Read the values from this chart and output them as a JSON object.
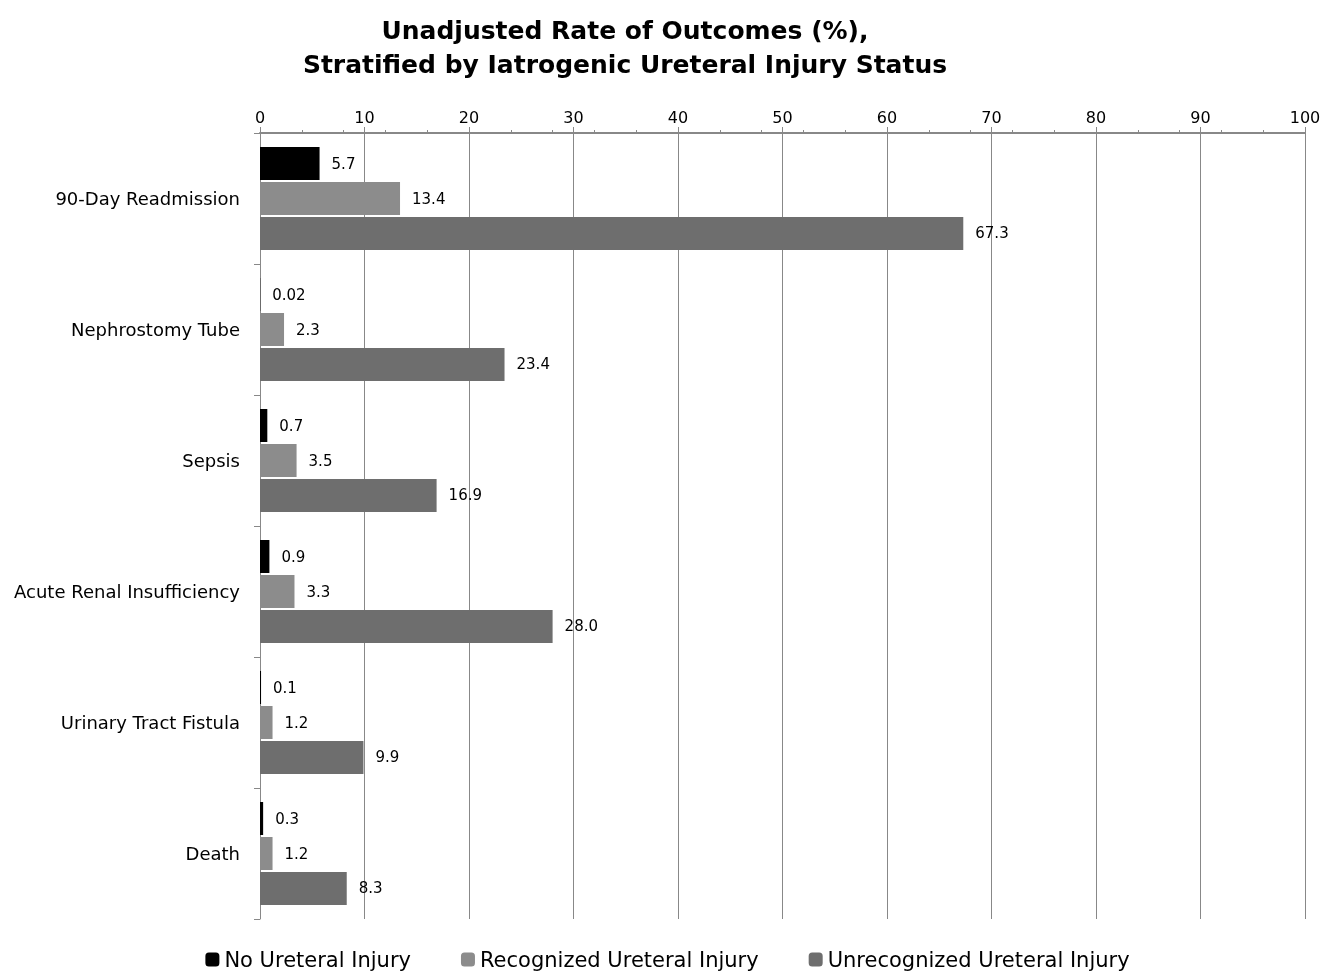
{
  "chart_data": {
    "type": "bar",
    "orientation": "horizontal",
    "title": "Unadjusted Rate of Outcomes (%),\nStratified by Iatrogenic Ureteral Injury Status",
    "categories": [
      "90-Day Readmission",
      "Nephrostomy Tube",
      "Sepsis",
      "Acute Renal Insufficiency",
      "Urinary Tract Fistula",
      "Death"
    ],
    "series": [
      {
        "name": "No Ureteral Injury",
        "color": "#000000",
        "values": [
          5.7,
          0.02,
          0.7,
          0.9,
          0.1,
          0.3
        ],
        "value_labels": [
          "5.7",
          "0.02",
          "0.7",
          "0.9",
          "0.1",
          "0.3"
        ]
      },
      {
        "name": "Recognized Ureteral Injury",
        "color": "#8c8c8c",
        "values": [
          13.4,
          2.3,
          3.5,
          3.3,
          1.2,
          1.2
        ],
        "value_labels": [
          "13.4",
          "2.3",
          "3.5",
          "3.3",
          "1.2",
          "1.2"
        ]
      },
      {
        "name": "Unrecognized Ureteral Injury",
        "color": "#6e6e6e",
        "values": [
          67.3,
          23.4,
          16.9,
          28.0,
          9.9,
          8.3
        ],
        "value_labels": [
          "67.3",
          "23.4",
          "16.9",
          "28.0",
          "9.9",
          "8.3"
        ]
      }
    ],
    "xlim": [
      0,
      100
    ],
    "xticks": [
      0,
      10,
      20,
      30,
      40,
      50,
      60,
      70,
      80,
      90,
      100
    ],
    "grid": "x",
    "legend": "bottom"
  }
}
